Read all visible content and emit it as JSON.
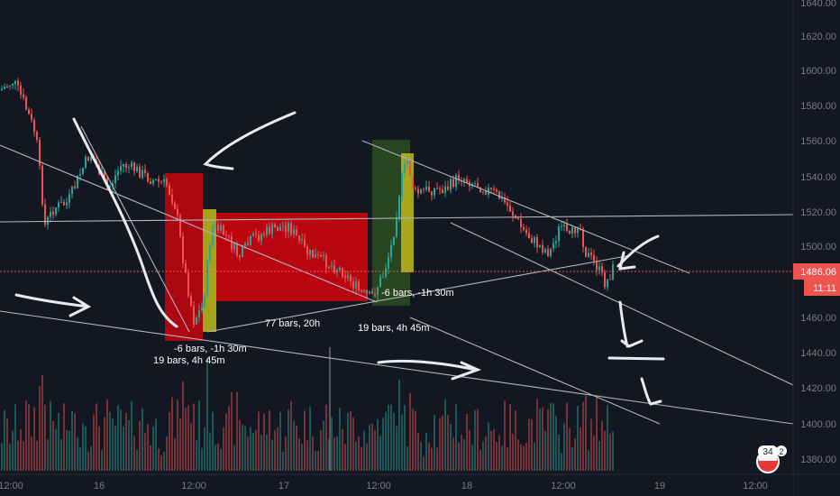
{
  "colors": {
    "background": "#131722",
    "up": "#26a69a",
    "down": "#ef5350",
    "price_line": "#ef5350",
    "trendline": "#b2b5be",
    "drawing": "#e0e3eb",
    "range_red": "#e8000b",
    "range_green": "#2b4d1f",
    "range_yellow": "#b6b21c"
  },
  "price_axis": {
    "ticks": [
      "1640.00",
      "1620.00",
      "1600.00",
      "1580.00",
      "1560.00",
      "1540.00",
      "1520.00",
      "1500.00",
      "1460.00",
      "1440.00",
      "1420.00",
      "1400.00",
      "1380.00"
    ],
    "current_price": "1486.06",
    "countdown": "11:11"
  },
  "time_axis": {
    "ticks": [
      "12:00",
      "16",
      "12:00",
      "17",
      "12:00",
      "18",
      "12:00",
      "19",
      "12:00"
    ]
  },
  "annotations": {
    "range1_a": "-6 bars, -1h 30m",
    "range1_b": "19 bars, 4h 45m",
    "range2": "77 bars, 20h",
    "range3_a": "-6 bars, -1h 30m",
    "range3_b": "19 bars, 4h 45m"
  },
  "badge": {
    "count": "34",
    "count2": "2"
  },
  "chart_data": {
    "type": "candlestick",
    "symbol_price": 1486.06,
    "ylim": [
      1372,
      1648
    ],
    "volume_shown": true,
    "grid": false
  }
}
